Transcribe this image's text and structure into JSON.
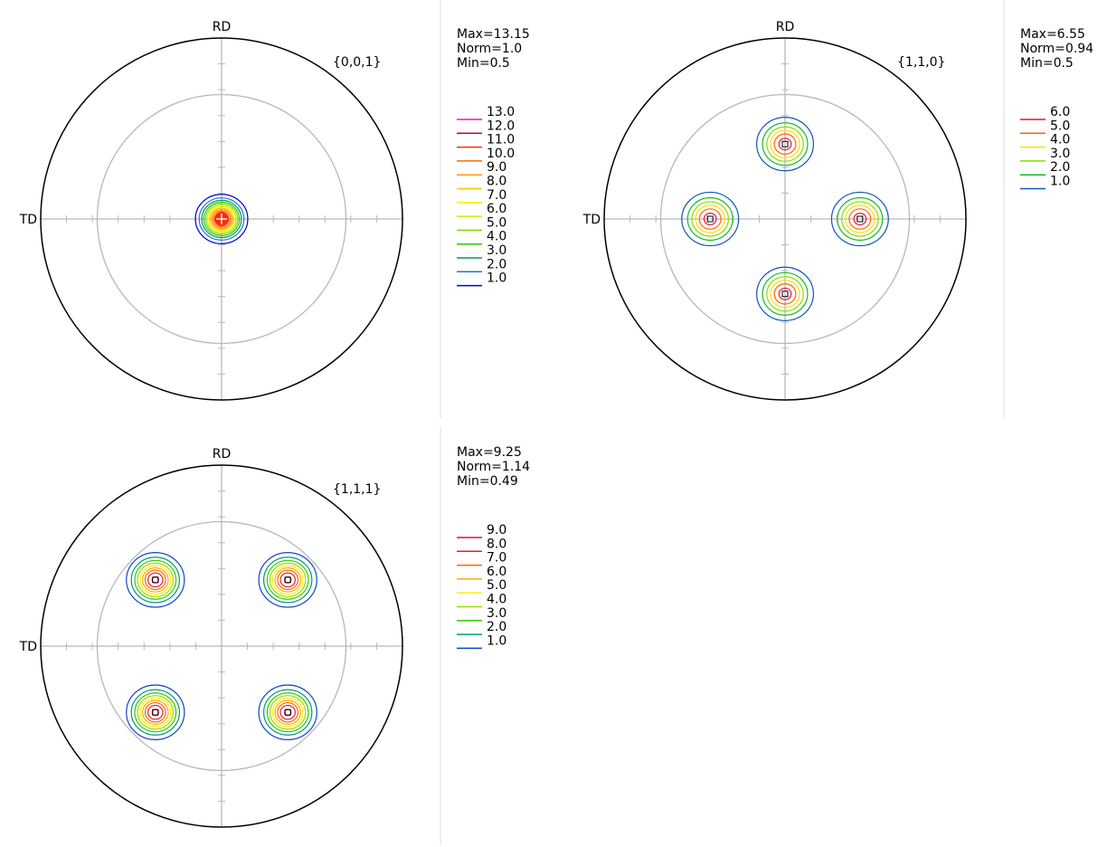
{
  "axis_labels": {
    "rd": "RD",
    "td": "TD"
  },
  "panels": [
    {
      "plane": "{0,0,1}",
      "stats": {
        "max": "Max=13.15",
        "norm": "Norm=1.0",
        "min": "Min=0.5"
      },
      "legend": [
        {
          "label": "13.0",
          "color": "#ff1493"
        },
        {
          "label": "12.0",
          "color": "#cc0033"
        },
        {
          "label": "11.0",
          "color": "#ff2a00"
        },
        {
          "label": "10.0",
          "color": "#ff6a00"
        },
        {
          "label": "9.0",
          "color": "#ff9900"
        },
        {
          "label": "8.0",
          "color": "#ffc000"
        },
        {
          "label": "7.0",
          "color": "#ffee00"
        },
        {
          "label": "6.0",
          "color": "#ccee00"
        },
        {
          "label": "5.0",
          "color": "#77dd00"
        },
        {
          "label": "4.0",
          "color": "#22cc00"
        },
        {
          "label": "3.0",
          "color": "#009966"
        },
        {
          "label": "2.0",
          "color": "#2277cc"
        },
        {
          "label": "1.0",
          "color": "#0000dd"
        }
      ],
      "poles": [
        {
          "u": 0,
          "v": 0
        }
      ],
      "pole_max": 13.15
    },
    {
      "plane": "{1,1,0}",
      "stats": {
        "max": "Max=6.55",
        "norm": "Norm=0.94",
        "min": "Min=0.5"
      },
      "legend": [
        {
          "label": "6.0",
          "color": "#ee1133"
        },
        {
          "label": "5.0",
          "color": "#ff6600"
        },
        {
          "label": "4.0",
          "color": "#ffdd00"
        },
        {
          "label": "3.0",
          "color": "#88dd00"
        },
        {
          "label": "2.0",
          "color": "#11bb22"
        },
        {
          "label": "1.0",
          "color": "#1155bb"
        }
      ],
      "poles": [
        {
          "u": 0,
          "v": 0.414
        },
        {
          "u": 0,
          "v": -0.414
        },
        {
          "u": 0.414,
          "v": 0
        },
        {
          "u": -0.414,
          "v": 0
        }
      ],
      "pole_max": 6.55
    },
    {
      "plane": "{1,1,1}",
      "stats": {
        "max": "Max=9.25",
        "norm": "Norm=1.14",
        "min": "Min=0.49"
      },
      "legend": [
        {
          "label": "9.0",
          "color": "#ee0055"
        },
        {
          "label": "8.0",
          "color": "#ee2222"
        },
        {
          "label": "7.0",
          "color": "#ff6600"
        },
        {
          "label": "6.0",
          "color": "#ffaa00"
        },
        {
          "label": "5.0",
          "color": "#ffee00"
        },
        {
          "label": "4.0",
          "color": "#99dd00"
        },
        {
          "label": "3.0",
          "color": "#33cc00"
        },
        {
          "label": "2.0",
          "color": "#009977"
        },
        {
          "label": "1.0",
          "color": "#1144cc"
        }
      ],
      "poles": [
        {
          "u": 0.366,
          "v": 0.366
        },
        {
          "u": -0.366,
          "v": 0.366
        },
        {
          "u": 0.366,
          "v": -0.366
        },
        {
          "u": -0.366,
          "v": -0.366
        }
      ],
      "pole_max": 9.25
    }
  ]
}
